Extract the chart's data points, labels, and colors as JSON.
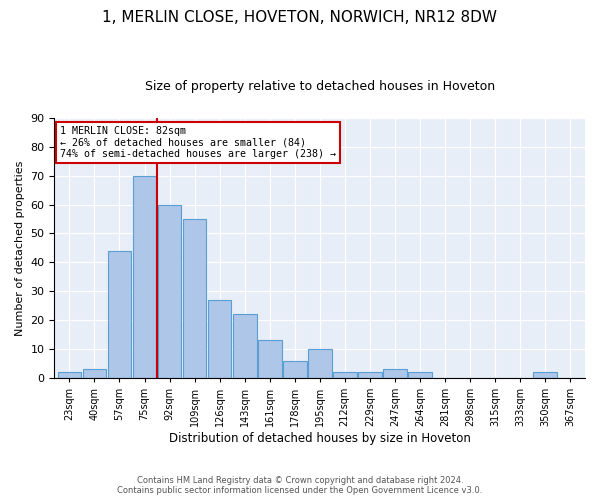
{
  "title1": "1, MERLIN CLOSE, HOVETON, NORWICH, NR12 8DW",
  "title2": "Size of property relative to detached houses in Hoveton",
  "xlabel": "Distribution of detached houses by size in Hoveton",
  "ylabel": "Number of detached properties",
  "categories": [
    "23sqm",
    "40sqm",
    "57sqm",
    "75sqm",
    "92sqm",
    "109sqm",
    "126sqm",
    "143sqm",
    "161sqm",
    "178sqm",
    "195sqm",
    "212sqm",
    "229sqm",
    "247sqm",
    "264sqm",
    "281sqm",
    "298sqm",
    "315sqm",
    "333sqm",
    "350sqm",
    "367sqm"
  ],
  "values": [
    2,
    3,
    44,
    70,
    60,
    55,
    27,
    22,
    13,
    6,
    10,
    2,
    2,
    3,
    2,
    0,
    0,
    0,
    0,
    2,
    0
  ],
  "bar_color": "#aec6e8",
  "bar_edge_color": "#5a9fd4",
  "vline_x": 3.5,
  "annotation_line1": "1 MERLIN CLOSE: 82sqm",
  "annotation_line2": "← 26% of detached houses are smaller (84)",
  "annotation_line3": "74% of semi-detached houses are larger (238) →",
  "annotation_box_color": "#ffffff",
  "annotation_box_edge_color": "#cc0000",
  "vline_color": "#cc0000",
  "ylim": [
    0,
    90
  ],
  "yticks": [
    0,
    10,
    20,
    30,
    40,
    50,
    60,
    70,
    80,
    90
  ],
  "footer1": "Contains HM Land Registry data © Crown copyright and database right 2024.",
  "footer2": "Contains public sector information licensed under the Open Government Licence v3.0.",
  "bg_color": "#e8eef8",
  "fig_bg_color": "#ffffff",
  "title1_fontsize": 11,
  "title2_fontsize": 9,
  "title1_bold": false
}
